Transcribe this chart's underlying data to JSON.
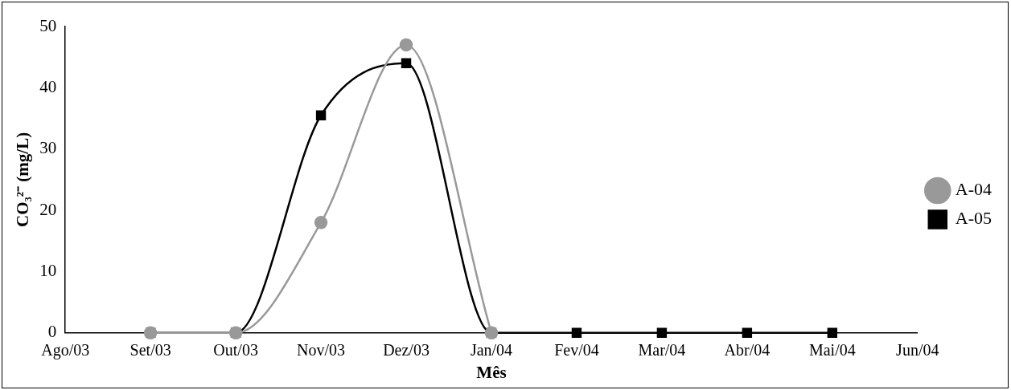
{
  "chart_data": {
    "type": "line",
    "xlabel": "Mês",
    "ylabel": "CO₃²⁻ (mg/L)",
    "categories": [
      "Ago/03",
      "Set/03",
      "Out/03",
      "Nov/03",
      "Dez/03",
      "Jan/04",
      "Fev/04",
      "Mar/04",
      "Abr/04",
      "Mai/04",
      "Jun/04"
    ],
    "series": [
      {
        "name": "A-04",
        "color": "#999999",
        "marker": "circle",
        "values": [
          null,
          0,
          0,
          18,
          47,
          0,
          null,
          null,
          null,
          null,
          null
        ]
      },
      {
        "name": "A-05",
        "color": "#000000",
        "marker": "square",
        "values": [
          null,
          0,
          0,
          35.5,
          44,
          0,
          0,
          0,
          0,
          0,
          null
        ]
      }
    ],
    "ylim": [
      0,
      50
    ],
    "yticks": [
      0,
      10,
      20,
      30,
      40,
      50
    ],
    "grid": false,
    "legend": "right",
    "line_style": "solid"
  }
}
